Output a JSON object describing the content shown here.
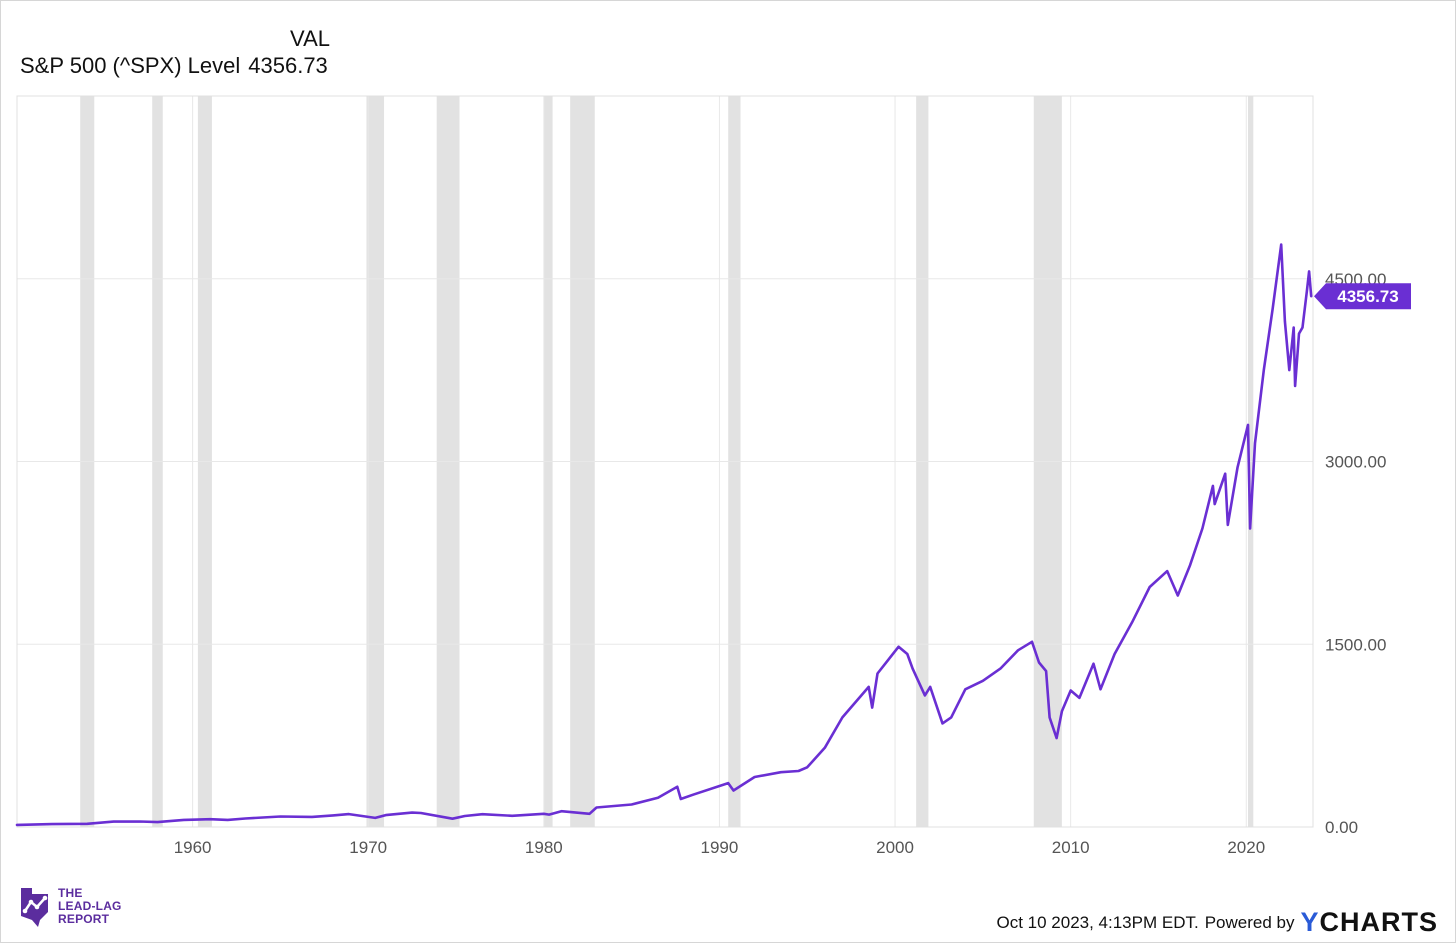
{
  "legend": {
    "column_header": "VAL",
    "series_label": "S&P 500 (^SPX) Level",
    "series_value": "4356.73"
  },
  "footer": {
    "timestamp": "Oct 10 2023, 4:13PM EDT.",
    "powered_by": "Powered by",
    "logo_y": "Y",
    "logo_rest": "CHARTS"
  },
  "brand": {
    "line1": "THE",
    "line2": "LEAD-LAG",
    "line3": "REPORT"
  },
  "colors": {
    "series": "#6a2fd3",
    "recession": "#e2e2e2",
    "grid": "#e8e8e8",
    "axis_text": "#555555",
    "brand": "#5b2d9e",
    "logo_accent": "#2a5bd7"
  },
  "chart_data": {
    "type": "line",
    "title": "S&P 500 (^SPX) Level",
    "xlabel": "",
    "ylabel": "",
    "xlim": [
      1950.0,
      2023.8
    ],
    "ylim": [
      0,
      6000
    ],
    "y_ticks": [
      0,
      1500,
      3000,
      4500
    ],
    "y_tick_labels": [
      "0.00",
      "1500.00",
      "3000.00",
      "4500.00"
    ],
    "x_ticks": [
      1960,
      1970,
      1980,
      1990,
      2000,
      2010,
      2020
    ],
    "x_tick_labels": [
      "1960",
      "1970",
      "1980",
      "1990",
      "2000",
      "2010",
      "2020"
    ],
    "last_value_label": "4356.73",
    "last_value": 4356.73,
    "recessions": [
      [
        1953.6,
        1954.4
      ],
      [
        1957.7,
        1958.3
      ],
      [
        1960.3,
        1961.1
      ],
      [
        1969.9,
        1970.9
      ],
      [
        1973.9,
        1975.2
      ],
      [
        1980.0,
        1980.5
      ],
      [
        1981.5,
        1982.9
      ],
      [
        1990.5,
        1991.2
      ],
      [
        2001.2,
        2001.9
      ],
      [
        2007.9,
        2009.5
      ],
      [
        2020.1,
        2020.4
      ]
    ],
    "series": [
      {
        "name": "S&P 500 (^SPX) Level",
        "x": [
          1950.0,
          1952.0,
          1954.0,
          1955.5,
          1957.0,
          1958.0,
          1959.5,
          1961.0,
          1962.0,
          1963.0,
          1965.0,
          1966.8,
          1968.0,
          1968.9,
          1970.4,
          1971.0,
          1972.5,
          1973.0,
          1974.8,
          1975.5,
          1976.5,
          1978.2,
          1980.0,
          1980.3,
          1981.0,
          1982.6,
          1983.0,
          1985.0,
          1986.5,
          1987.6,
          1987.8,
          1988.5,
          1990.5,
          1990.8,
          1992.0,
          1993.5,
          1994.5,
          1995.0,
          1996.0,
          1997.0,
          1998.5,
          1998.7,
          1999.0,
          2000.2,
          2000.7,
          2001.0,
          2001.7,
          2002.0,
          2002.7,
          2003.2,
          2004.0,
          2005.0,
          2006.0,
          2007.0,
          2007.8,
          2008.2,
          2008.6,
          2008.8,
          2009.2,
          2009.5,
          2010.0,
          2010.5,
          2011.3,
          2011.7,
          2012.5,
          2013.5,
          2014.5,
          2015.5,
          2016.1,
          2016.8,
          2017.5,
          2018.1,
          2018.2,
          2018.8,
          2018.95,
          2019.5,
          2020.1,
          2020.22,
          2020.5,
          2021.0,
          2021.5,
          2021.99,
          2022.2,
          2022.45,
          2022.7,
          2022.78,
          2023.0,
          2023.2,
          2023.45,
          2023.58,
          2023.7
        ],
        "values": [
          17,
          24,
          26,
          44,
          45,
          40,
          58,
          64,
          58,
          70,
          86,
          83,
          95,
          106,
          75,
          98,
          118,
          115,
          68,
          90,
          105,
          92,
          108,
          102,
          130,
          108,
          160,
          185,
          240,
          330,
          230,
          265,
          360,
          300,
          410,
          450,
          460,
          490,
          650,
          900,
          1150,
          980,
          1260,
          1480,
          1420,
          1300,
          1080,
          1150,
          850,
          900,
          1130,
          1200,
          1300,
          1450,
          1520,
          1350,
          1280,
          900,
          730,
          950,
          1120,
          1060,
          1340,
          1130,
          1420,
          1680,
          1970,
          2100,
          1900,
          2150,
          2450,
          2800,
          2650,
          2900,
          2480,
          2950,
          3300,
          2450,
          3150,
          3750,
          4250,
          4780,
          4150,
          3750,
          4100,
          3620,
          4050,
          4100,
          4400,
          4560,
          4356.73
        ]
      }
    ]
  }
}
